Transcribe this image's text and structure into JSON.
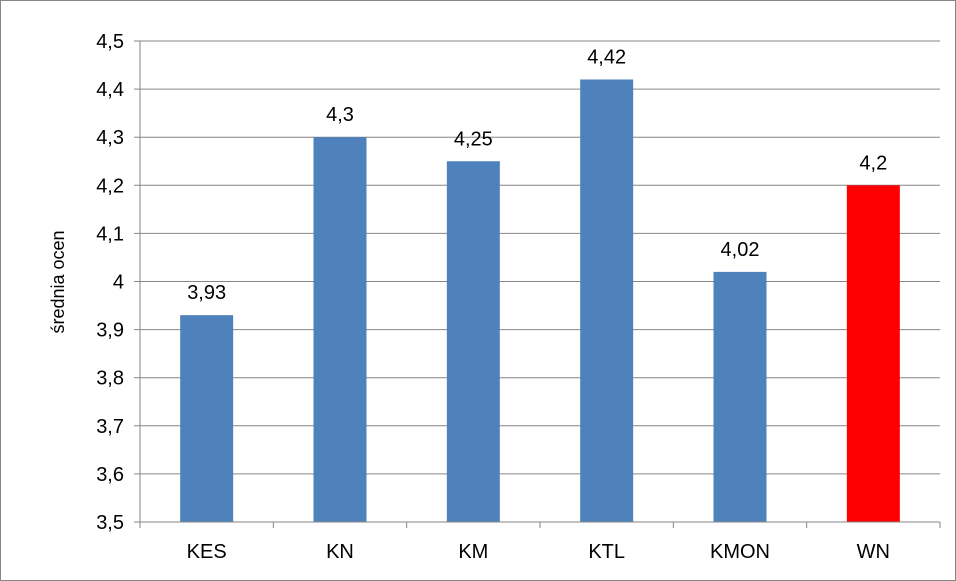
{
  "chart_data": {
    "type": "bar",
    "title": "",
    "xlabel": "",
    "ylabel": "średnia ocen",
    "ylim": [
      3.5,
      4.5
    ],
    "yticks": [
      "3,5",
      "3,6",
      "3,7",
      "3,8",
      "3,9",
      "4",
      "4,1",
      "4,2",
      "4,3",
      "4,4",
      "4,5"
    ],
    "ytick_values": [
      3.5,
      3.6,
      3.7,
      3.8,
      3.9,
      4.0,
      4.1,
      4.2,
      4.3,
      4.4,
      4.5
    ],
    "categories": [
      "KES",
      "KN",
      "KM",
      "KTL",
      "KMON",
      "WN"
    ],
    "values": [
      3.93,
      4.3,
      4.25,
      4.42,
      4.02,
      4.2
    ],
    "data_labels": [
      "3,93",
      "4,3",
      "4,25",
      "4,42",
      "4,02",
      "4,2"
    ],
    "colors": [
      "#4F81BD",
      "#4F81BD",
      "#4F81BD",
      "#4F81BD",
      "#4F81BD",
      "#FF0000"
    ],
    "grid": true,
    "legend": "none"
  }
}
